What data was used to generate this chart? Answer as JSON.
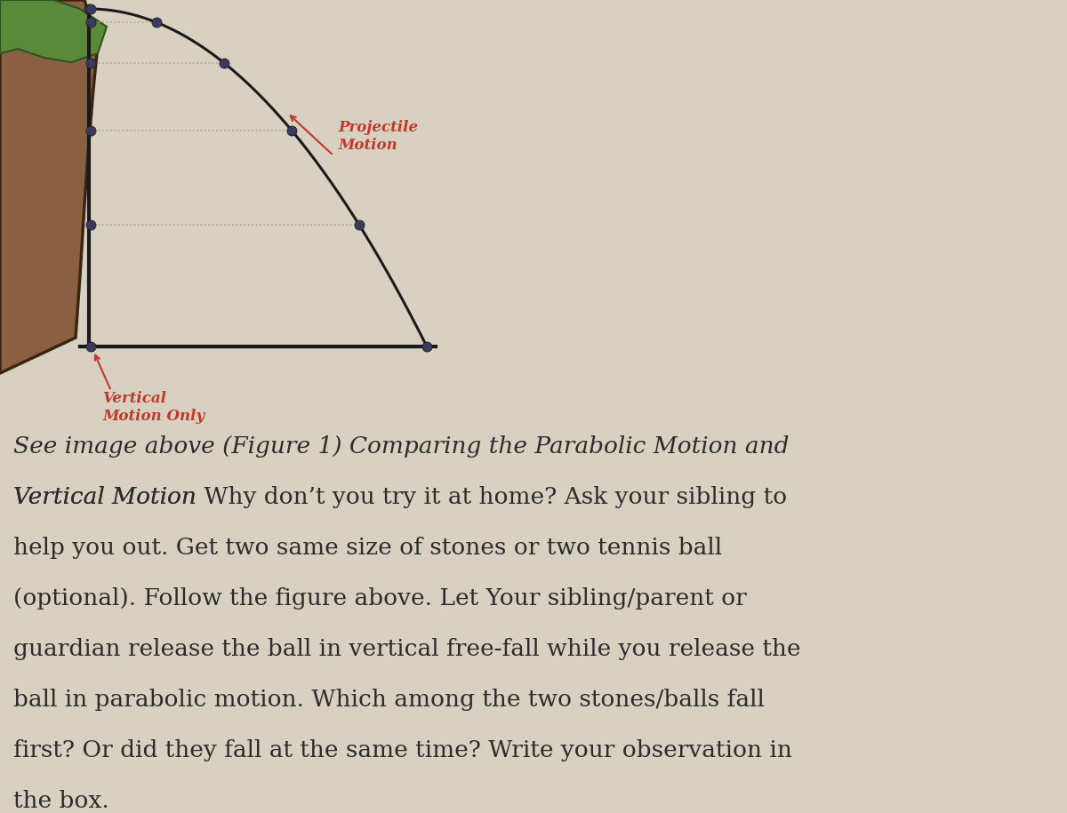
{
  "background_color": "#d8d0c0",
  "fig_width": 12.0,
  "fig_height": 9.15,
  "diagram": {
    "cliff_color": "#8B6040",
    "cliff_edge_color": "#3a2510",
    "cliff_green": "#5a8a3a",
    "ground_color": "#1a1a1a",
    "curve_color": "#1a1a1a",
    "dot_color": "#3a3a5a",
    "dotted_line_color": "#b0a888",
    "label_color": "#c0392b",
    "projectile_label": "Projectile\nMotion",
    "vertical_label": "Vertical\nMotion Only"
  },
  "text": {
    "color": "#2c2c2c",
    "fontsize": 19,
    "line1_italic": "See image above (Figure 1) Comparing the Parabolic Motion and",
    "line2_italic": "Vertical Motion",
    "line2_normal": " Why don’t you try it at home? Ask your sibling to",
    "line3": "help you out. Get two same size of stones or two tennis ball",
    "line4": "(optional). Follow the figure above. Let Your sibling/parent or",
    "line5": "guardian release the ball in vertical free-fall while you release the",
    "line6": "ball in parabolic motion. Which among the two stones/balls fall",
    "line7": "first? Or did they fall at the same time? Write your observation in",
    "line8": "the box."
  }
}
